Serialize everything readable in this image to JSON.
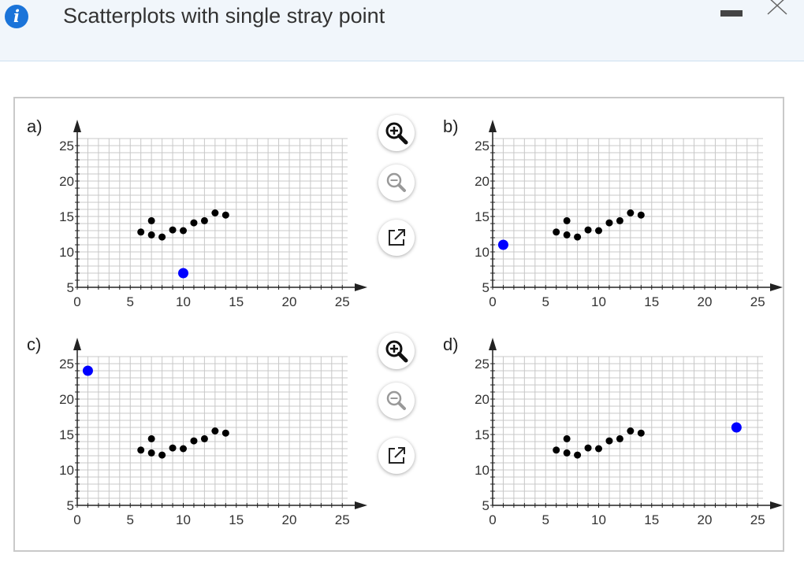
{
  "header": {
    "title": "Scatterplots with single stray point",
    "info_icon": "i"
  },
  "colors": {
    "accent": "#1b74d9",
    "stray_point": "#0000ff",
    "points": "#000000",
    "grid": "#c8c8c8"
  },
  "tools": [
    "zoom-in-icon",
    "zoom-out-icon",
    "open-external-icon"
  ],
  "chart_data": [
    {
      "label": "a)",
      "type": "scatter",
      "xlim": [
        0,
        25
      ],
      "ylim": [
        5,
        25
      ],
      "xticks": [
        "0",
        "5",
        "10",
        "15",
        "20",
        "25"
      ],
      "yticks": [
        "5",
        "10",
        "15",
        "20",
        "25"
      ],
      "points": [
        [
          6,
          12.8
        ],
        [
          7,
          12.4
        ],
        [
          7,
          14.4
        ],
        [
          8,
          12.1
        ],
        [
          9,
          13.1
        ],
        [
          10,
          13
        ],
        [
          11,
          14.1
        ],
        [
          12,
          14.4
        ],
        [
          13,
          15.5
        ],
        [
          14,
          15.2
        ]
      ],
      "stray": [
        10,
        7
      ]
    },
    {
      "label": "b)",
      "type": "scatter",
      "xlim": [
        0,
        25
      ],
      "ylim": [
        5,
        25
      ],
      "xticks": [
        "0",
        "5",
        "10",
        "15",
        "20",
        "25"
      ],
      "yticks": [
        "5",
        "10",
        "15",
        "20",
        "25"
      ],
      "points": [
        [
          6,
          12.8
        ],
        [
          7,
          12.4
        ],
        [
          7,
          14.4
        ],
        [
          8,
          12.1
        ],
        [
          9,
          13.1
        ],
        [
          10,
          13
        ],
        [
          11,
          14.1
        ],
        [
          12,
          14.4
        ],
        [
          13,
          15.5
        ],
        [
          14,
          15.2
        ]
      ],
      "stray": [
        1,
        11
      ]
    },
    {
      "label": "c)",
      "type": "scatter",
      "xlim": [
        0,
        25
      ],
      "ylim": [
        5,
        25
      ],
      "xticks": [
        "0",
        "5",
        "10",
        "15",
        "20",
        "25"
      ],
      "yticks": [
        "5",
        "10",
        "15",
        "20",
        "25"
      ],
      "points": [
        [
          6,
          12.8
        ],
        [
          7,
          12.4
        ],
        [
          7,
          14.4
        ],
        [
          8,
          12.1
        ],
        [
          9,
          13.1
        ],
        [
          10,
          13
        ],
        [
          11,
          14.1
        ],
        [
          12,
          14.4
        ],
        [
          13,
          15.5
        ],
        [
          14,
          15.2
        ]
      ],
      "stray": [
        1,
        24
      ]
    },
    {
      "label": "d)",
      "type": "scatter",
      "xlim": [
        0,
        25
      ],
      "ylim": [
        5,
        25
      ],
      "xticks": [
        "0",
        "5",
        "10",
        "15",
        "20",
        "25"
      ],
      "yticks": [
        "5",
        "10",
        "15",
        "20",
        "25"
      ],
      "points": [
        [
          6,
          12.8
        ],
        [
          7,
          12.4
        ],
        [
          7,
          14.4
        ],
        [
          8,
          12.1
        ],
        [
          9,
          13.1
        ],
        [
          10,
          13
        ],
        [
          11,
          14.1
        ],
        [
          12,
          14.4
        ],
        [
          13,
          15.5
        ],
        [
          14,
          15.2
        ]
      ],
      "stray": [
        23,
        16
      ]
    }
  ]
}
